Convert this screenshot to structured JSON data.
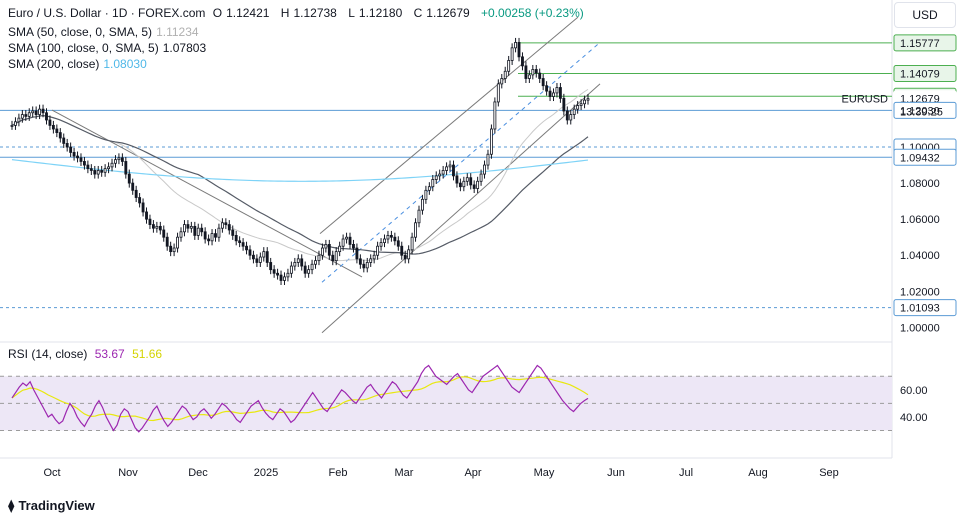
{
  "header": {
    "symbol": "Euro / U.S. Dollar · 1D · FOREX.com",
    "open_label": "O",
    "open": "1.12421",
    "high_label": "H",
    "high": "1.12738",
    "low_label": "L",
    "low": "1.12180",
    "close_label": "C",
    "close": "1.12679",
    "change": "+0.00258 (+0.23%)"
  },
  "indicators": [
    {
      "label": "SMA (50, close, 0, SMA, 5)",
      "value": "1.11234",
      "color": "#c9c9c9"
    },
    {
      "label": "SMA (100, close, 0, SMA, 5)",
      "value": "1.07803",
      "color": "#131722"
    },
    {
      "label": "SMA (200, close)",
      "value": "1.08030",
      "color": "#7ed3f7"
    }
  ],
  "rsi_legend": {
    "label": "RSI (14, close)",
    "value1": "53.67",
    "value2": "51.66",
    "color1": "#9c27b0",
    "color2": "#e8e810"
  },
  "currency_button": "USD",
  "symbol_tag": "EURUSD",
  "countdown": "13:39:25",
  "brand": "TradingView",
  "colors": {
    "up": "#131722",
    "down": "#131722",
    "green_level": "#4caf50",
    "blue_level": "#5b9bd5",
    "rsi": "#9c27b0",
    "rsi_ma": "#e8e810",
    "rsi_band": "#ede7f6"
  },
  "chart_data": {
    "type": "candlestick",
    "x_ticks": [
      "Oct",
      "Nov",
      "Dec",
      "2025",
      "Feb",
      "Mar",
      "Apr",
      "May",
      "Jun",
      "Jul",
      "Aug",
      "Sep"
    ],
    "y_ticks": [
      "1.08000",
      "1.06000",
      "1.04000",
      "1.02000",
      "1.00000"
    ],
    "price_tags": [
      {
        "text": "1.15777",
        "value": 1.15777,
        "style": "green"
      },
      {
        "text": "1.14079",
        "value": 1.14079,
        "style": "green"
      },
      {
        "text": "1.12818",
        "value": 1.12818,
        "style": "green"
      },
      {
        "text": "1.12679",
        "value": 1.12679,
        "style": "current"
      },
      {
        "text": "1.12030",
        "value": 1.1203,
        "style": "blue"
      },
      {
        "text": "1.10000",
        "value": 1.1,
        "style": "blue"
      },
      {
        "text": "1.09432",
        "value": 1.09432,
        "style": "blue"
      },
      {
        "text": "1.01093",
        "value": 1.01093,
        "style": "blue"
      }
    ],
    "ylim": [
      0.993,
      1.166
    ],
    "close_series": [
      1.112,
      1.114,
      1.116,
      1.118,
      1.117,
      1.119,
      1.12,
      1.118,
      1.121,
      1.119,
      1.115,
      1.112,
      1.11,
      1.108,
      1.105,
      1.102,
      1.1,
      1.097,
      1.095,
      1.094,
      1.092,
      1.09,
      1.088,
      1.087,
      1.085,
      1.087,
      1.086,
      1.088,
      1.089,
      1.091,
      1.093,
      1.094,
      1.092,
      1.085,
      1.08,
      1.076,
      1.072,
      1.069,
      1.064,
      1.06,
      1.057,
      1.055,
      1.056,
      1.054,
      1.05,
      1.045,
      1.042,
      1.044,
      1.05,
      1.053,
      1.057,
      1.055,
      1.056,
      1.051,
      1.055,
      1.053,
      1.049,
      1.048,
      1.052,
      1.05,
      1.055,
      1.058,
      1.057,
      1.054,
      1.051,
      1.048,
      1.047,
      1.045,
      1.043,
      1.04,
      1.038,
      1.036,
      1.039,
      1.042,
      1.036,
      1.032,
      1.03,
      1.029,
      1.026,
      1.028,
      1.03,
      1.034,
      1.036,
      1.038,
      1.034,
      1.03,
      1.032,
      1.035,
      1.037,
      1.04,
      1.044,
      1.046,
      1.04,
      1.037,
      1.042,
      1.045,
      1.049,
      1.05,
      1.046,
      1.044,
      1.038,
      1.035,
      1.033,
      1.036,
      1.038,
      1.04,
      1.045,
      1.047,
      1.049,
      1.051,
      1.05,
      1.048,
      1.045,
      1.04,
      1.038,
      1.043,
      1.05,
      1.058,
      1.065,
      1.071,
      1.076,
      1.078,
      1.082,
      1.084,
      1.085,
      1.087,
      1.089,
      1.09,
      1.084,
      1.08,
      1.078,
      1.081,
      1.083,
      1.079,
      1.077,
      1.081,
      1.085,
      1.09,
      1.096,
      1.11,
      1.125,
      1.135,
      1.138,
      1.142,
      1.148,
      1.155,
      1.158,
      1.15,
      1.145,
      1.138,
      1.14,
      1.143,
      1.141,
      1.138,
      1.134,
      1.131,
      1.128,
      1.13,
      1.133,
      1.127,
      1.12,
      1.115,
      1.118,
      1.121,
      1.123,
      1.124,
      1.126,
      1.1268
    ],
    "rsi_values": [
      54,
      58,
      62,
      65,
      63,
      66,
      60,
      55,
      50,
      45,
      40,
      42,
      38,
      35,
      37,
      44,
      50,
      46,
      40,
      36,
      33,
      38,
      42,
      48,
      52,
      47,
      40,
      35,
      30,
      34,
      42,
      46,
      44,
      38,
      32,
      29,
      32,
      36,
      40,
      45,
      48,
      42,
      37,
      33,
      36,
      40,
      44,
      48,
      46,
      42,
      38,
      40,
      44,
      46,
      43,
      39,
      42,
      46,
      50,
      48,
      45,
      42,
      38,
      36,
      40,
      44,
      48,
      50,
      52,
      47,
      43,
      40,
      38,
      42,
      46,
      44,
      40,
      36,
      38,
      42,
      46,
      50,
      54,
      58,
      54,
      50,
      46,
      44,
      48,
      52,
      56,
      60,
      58,
      55,
      52,
      50,
      54,
      58,
      62,
      64,
      60,
      57,
      54,
      58,
      62,
      66,
      64,
      60,
      56,
      54,
      58,
      62,
      66,
      72,
      76,
      78,
      74,
      70,
      68,
      66,
      64,
      67,
      70,
      72,
      68,
      64,
      60,
      58,
      62,
      66,
      70,
      72,
      74,
      76,
      78,
      74,
      70,
      66,
      62,
      60,
      58,
      62,
      66,
      70,
      74,
      78,
      76,
      72,
      68,
      64,
      60,
      56,
      52,
      49,
      46,
      44,
      47,
      50,
      52,
      53.67
    ]
  }
}
